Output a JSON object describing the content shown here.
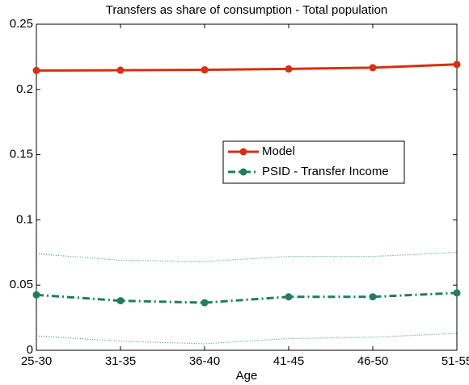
{
  "chart_data": {
    "type": "line",
    "title": "Transfers as share of consumption - Total population",
    "x_label": "Age",
    "categories": [
      "25-30",
      "31-35",
      "36-40",
      "41-45",
      "46-50",
      "51-55"
    ],
    "series": [
      {
        "name": "Model",
        "color": "#d6300f",
        "linestyle": "solid",
        "marker": true,
        "values": [
          0.2145,
          0.2147,
          0.215,
          0.2157,
          0.2167,
          0.2192
        ]
      },
      {
        "name": "PSID - Transfer Income",
        "color": "#1f7f5a",
        "linestyle": "dashdot",
        "marker": true,
        "values": [
          0.0425,
          0.038,
          0.0365,
          0.041,
          0.041,
          0.044
        ]
      },
      {
        "color": "#3a9a8a",
        "linestyle": "dotted",
        "marker": false,
        "values": [
          0.074,
          0.069,
          0.068,
          0.072,
          0.072,
          0.075
        ]
      },
      {
        "color": "#3a9a8a",
        "linestyle": "dotted",
        "marker": false,
        "values": [
          0.011,
          0.007,
          0.005,
          0.009,
          0.01,
          0.013
        ]
      }
    ],
    "ylim": [
      0,
      0.25
    ],
    "yticks": [
      0,
      0.05,
      0.1,
      0.15,
      0.2,
      0.25
    ],
    "grid": false,
    "legend": "center-right"
  }
}
